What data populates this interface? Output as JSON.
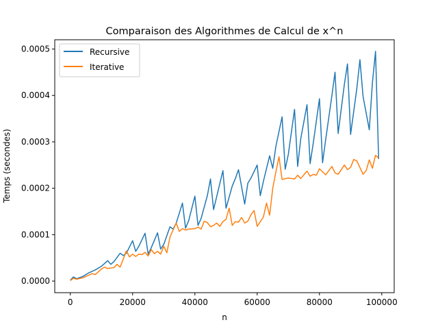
{
  "chart_data": {
    "type": "line",
    "title": "Comparaison des Algorithmes de Calcul de x^n",
    "xlabel": "n",
    "ylabel": "Temps (secondes)",
    "xlim": [
      -5000,
      104000
    ],
    "ylim": [
      -2.5e-05,
      0.00052
    ],
    "xticks": [
      0,
      20000,
      40000,
      60000,
      80000,
      100000
    ],
    "xtick_labels": [
      "0",
      "20000",
      "40000",
      "60000",
      "80000",
      "100000"
    ],
    "yticks": [
      0.0,
      0.0001,
      0.0002,
      0.0003,
      0.0004,
      0.0005
    ],
    "ytick_labels": [
      "0.0000",
      "0.0001",
      "0.0002",
      "0.0003",
      "0.0004",
      "0.0005"
    ],
    "grid": false,
    "legend_position": "top-left",
    "series": [
      {
        "name": "Recursive",
        "color": "#1f77b4",
        "x": [
          0,
          1000,
          2000,
          4000,
          6000,
          8000,
          10000,
          12000,
          13000,
          14000,
          16000,
          17000,
          18000,
          20000,
          21000,
          22000,
          24000,
          25000,
          26000,
          28000,
          29000,
          30000,
          32000,
          33000,
          34000,
          36000,
          37000,
          38000,
          40000,
          41000,
          42000,
          44000,
          45000,
          46000,
          48000,
          49000,
          50000,
          52000,
          53000,
          54000,
          56000,
          57000,
          58000,
          60000,
          61000,
          62000,
          64000,
          65000,
          66000,
          68000,
          69000,
          70000,
          72000,
          73000,
          74000,
          76000,
          77000,
          78000,
          80000,
          81000,
          82000,
          84000,
          85000,
          86000,
          88000,
          89000,
          90000,
          92000,
          93000,
          94000,
          96000,
          97000,
          98000,
          99000
        ],
        "values": [
          2e-06,
          9e-06,
          5e-06,
          1e-05,
          1.8e-05,
          2.4e-05,
          3.2e-05,
          4.4e-05,
          3.6e-05,
          4.2e-05,
          6e-05,
          5.5e-05,
          6e-05,
          8.7e-05,
          6.4e-05,
          7.5e-05,
          0.000103,
          5.8e-05,
          7.2e-05,
          0.000104,
          6.9e-05,
          7.9e-05,
          0.000117,
          0.000112,
          0.000125,
          0.000168,
          0.000114,
          0.00013,
          0.000183,
          0.00012,
          0.000135,
          0.000184,
          0.00022,
          0.000154,
          0.00021,
          0.000238,
          0.000157,
          0.000205,
          0.000221,
          0.00024,
          0.000166,
          0.000211,
          0.000222,
          0.00025,
          0.000184,
          0.000215,
          0.00027,
          0.000243,
          0.00029,
          0.000354,
          0.000241,
          0.000273,
          0.00037,
          0.000247,
          0.000307,
          0.00038,
          0.000253,
          0.000297,
          0.000393,
          0.000255,
          0.000305,
          0.0004,
          0.00045,
          0.000318,
          0.000424,
          0.000468,
          0.000316,
          0.000415,
          0.000477,
          0.000398,
          0.000326,
          0.000427,
          0.000495,
          0.000263
        ]
      },
      {
        "name": "Iterative",
        "color": "#ff7f0e",
        "x": [
          0,
          1000,
          2000,
          4000,
          6000,
          7000,
          8000,
          10000,
          11000,
          12000,
          14000,
          15000,
          16000,
          18000,
          19000,
          20000,
          21000,
          22000,
          23000,
          24000,
          25000,
          26000,
          27000,
          28000,
          29000,
          30000,
          31000,
          32000,
          34000,
          35000,
          36000,
          37000,
          38000,
          40000,
          41000,
          42000,
          43000,
          44000,
          45000,
          46000,
          47000,
          48000,
          49000,
          50000,
          51000,
          52000,
          53000,
          54000,
          55000,
          56000,
          57000,
          58000,
          59000,
          60000,
          61000,
          62000,
          63000,
          64000,
          65000,
          66000,
          67000,
          68000,
          70000,
          72000,
          73000,
          74000,
          76000,
          77000,
          78000,
          79000,
          80000,
          82000,
          84000,
          85000,
          86000,
          88000,
          89000,
          90000,
          91000,
          92000,
          94000,
          95000,
          96000,
          97000,
          98000,
          99000
        ],
        "values": [
          1e-06,
          6e-06,
          4e-06,
          7e-06,
          1.3e-05,
          1.6e-05,
          1.4e-05,
          2.6e-05,
          3e-05,
          2.7e-05,
          2.9e-05,
          3.6e-05,
          3e-05,
          6.5e-05,
          5.2e-05,
          5.8e-05,
          5.3e-05,
          5.8e-05,
          5.7e-05,
          6.2e-05,
          5.4e-05,
          6.8e-05,
          5.9e-05,
          6.4e-05,
          5.8e-05,
          7.5e-05,
          6.1e-05,
          9.5e-05,
          0.000125,
          0.000107,
          0.000113,
          0.00011,
          0.000112,
          0.000113,
          0.000116,
          0.000112,
          0.000129,
          0.000126,
          0.000117,
          0.00012,
          0.000125,
          0.000118,
          0.000128,
          0.000133,
          0.000157,
          0.00012,
          0.000128,
          0.000127,
          0.000137,
          0.000125,
          0.000129,
          0.000143,
          0.000152,
          0.000118,
          0.000128,
          0.000138,
          0.000168,
          0.000142,
          0.0002,
          0.000235,
          0.000268,
          0.000219,
          0.000222,
          0.00022,
          0.000228,
          0.000221,
          0.000237,
          0.000226,
          0.00023,
          0.000228,
          0.000242,
          0.000229,
          0.000247,
          0.000233,
          0.00023,
          0.00025,
          0.00024,
          0.000245,
          0.000262,
          0.000259,
          0.00023,
          0.000238,
          0.000261,
          0.000243,
          0.000271,
          0.000265
        ]
      }
    ]
  }
}
